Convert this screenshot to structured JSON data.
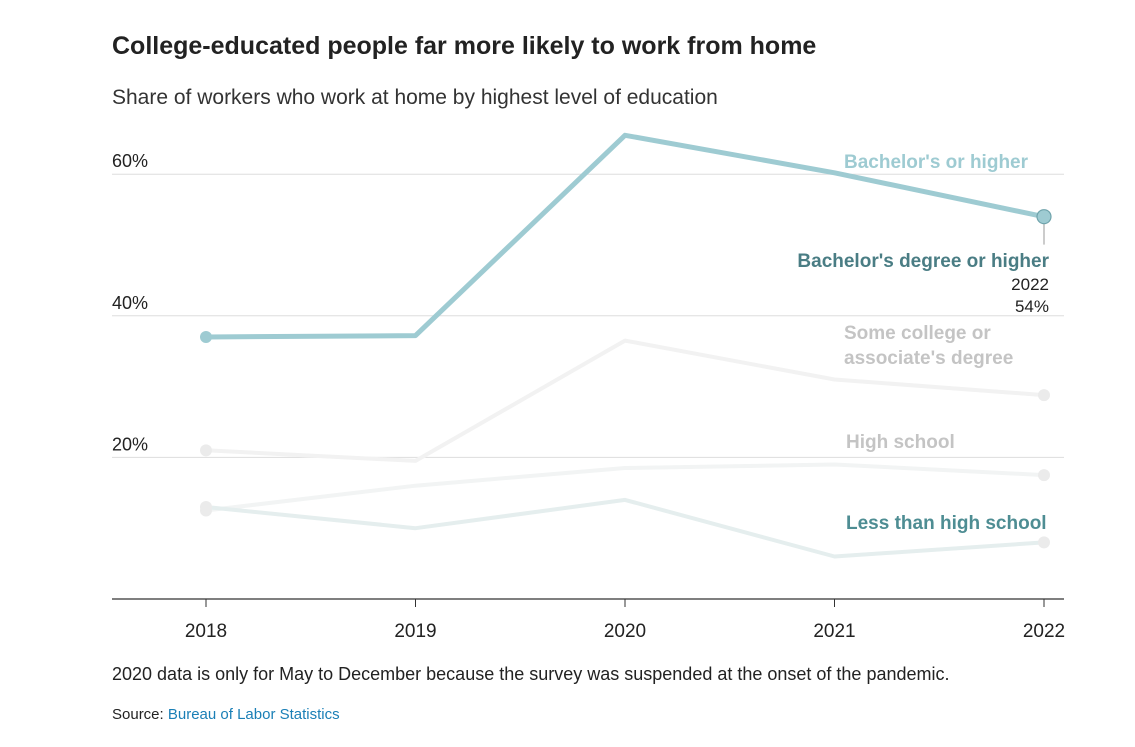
{
  "header": {
    "title": "College-educated people far more likely to work from home",
    "subtitle": "Share of workers who work at home by highest level of education"
  },
  "footer": {
    "note": "2020 data is only for May to December because the survey was suspended at the onset of the pandemic.",
    "source_prefix": "Source:",
    "source_link": "Bureau of Labor Statistics"
  },
  "chart_data": {
    "type": "line",
    "title": "College-educated people far more likely to work from home",
    "subtitle": "Share of workers who work at home by highest level of education",
    "x": [
      2018,
      2019,
      2020,
      2021,
      2022
    ],
    "x_tick_labels": [
      "2018",
      "2019",
      "2020",
      "2021",
      "2022"
    ],
    "ylim": [
      0,
      70
    ],
    "y_ticks": [
      20,
      40,
      60
    ],
    "y_tick_labels": [
      "20%",
      "40%",
      "60%"
    ],
    "grid": true,
    "series": [
      {
        "name": "Bachelor's or higher",
        "values": [
          37,
          37.2,
          65.5,
          60.2,
          54
        ],
        "color": "#9ecbd2",
        "highlight": true
      },
      {
        "name": "Some college or associate's degree",
        "values": [
          21,
          19.5,
          36.5,
          31,
          28.8
        ],
        "color": "#f2f2f2",
        "label_color": "#c4c4c4"
      },
      {
        "name": "High school",
        "values": [
          12.5,
          16,
          18.5,
          19,
          17.5
        ],
        "color": "#f2f4f4",
        "label_color": "#c4c4c4"
      },
      {
        "name": "Less than high school",
        "values": [
          13,
          10,
          14,
          6,
          8
        ],
        "color": "#e5eeee",
        "label_color": "#4e8d93"
      }
    ],
    "series_label_lines": [
      [
        "Bachelor's or higher"
      ],
      [
        "Some college or",
        "associate's degree"
      ],
      [
        "High school"
      ],
      [
        "Less than high school"
      ]
    ],
    "tooltip": {
      "label": "Bachelor's degree or higher",
      "year": "2022",
      "value": "54%",
      "label_color": "#4a7d84"
    }
  }
}
